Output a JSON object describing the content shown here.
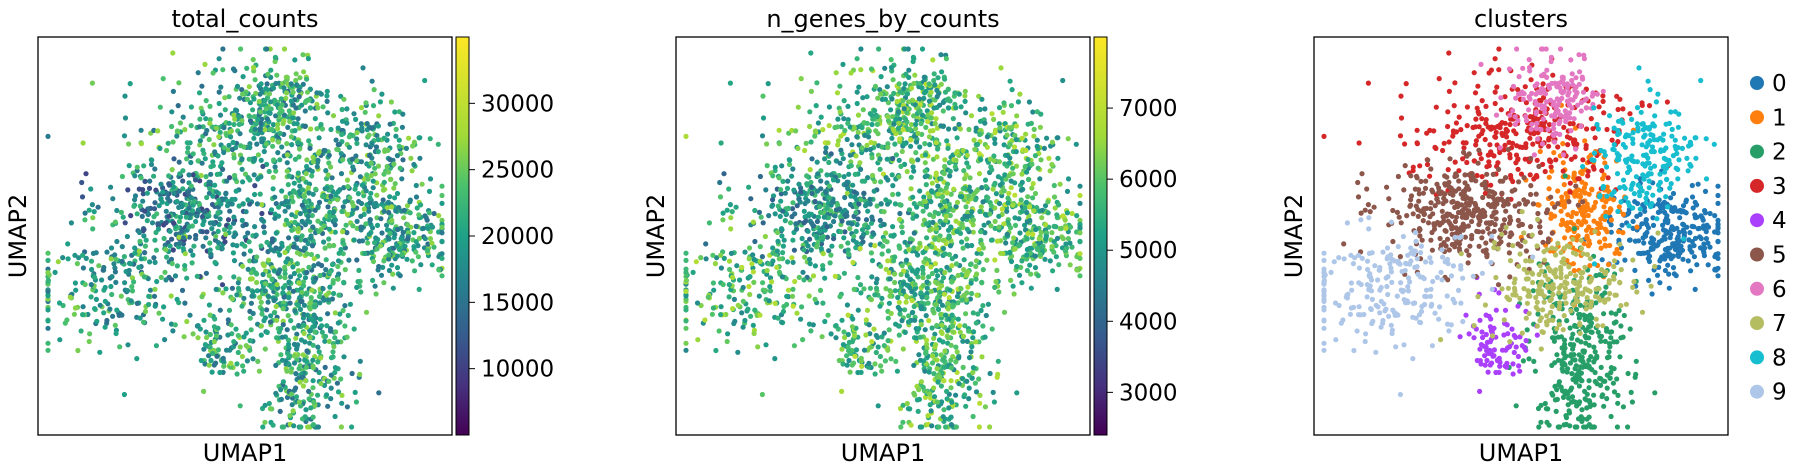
{
  "chart_data": [
    {
      "type": "scatter",
      "title": "total_counts",
      "xlabel": "UMAP1",
      "ylabel": "UMAP2",
      "color_by": "continuous",
      "colormap": "viridis",
      "colorbar": {
        "min": 5000,
        "max": 35000,
        "ticks": [
          10000,
          15000,
          20000,
          25000,
          30000
        ],
        "tick_labels": [
          "10000",
          "15000",
          "20000",
          "25000",
          "30000"
        ]
      },
      "grid": false,
      "note": "continuous color; high values (bright yellow) scattered across embedding"
    },
    {
      "type": "scatter",
      "title": "n_genes_by_counts",
      "xlabel": "UMAP1",
      "ylabel": "UMAP2",
      "color_by": "continuous",
      "colormap": "viridis",
      "colorbar": {
        "min": 2400,
        "max": 8000,
        "ticks": [
          3000,
          4000,
          5000,
          6000,
          7000
        ],
        "tick_labels": [
          "3000",
          "4000",
          "5000",
          "6000",
          "7000"
        ]
      },
      "grid": false
    },
    {
      "type": "scatter",
      "title": "clusters",
      "xlabel": "UMAP1",
      "ylabel": "UMAP2",
      "color_by": "categorical",
      "legend_position": "right",
      "grid": false,
      "categories": [
        "0",
        "1",
        "2",
        "3",
        "4",
        "5",
        "6",
        "7",
        "8",
        "9"
      ],
      "colors": [
        "#1f77b4",
        "#ff7f0e",
        "#279e68",
        "#d62728",
        "#aa40fc",
        "#8c564b",
        "#e377c2",
        "#b5bd61",
        "#17becf",
        "#aec7e8"
      ]
    }
  ]
}
